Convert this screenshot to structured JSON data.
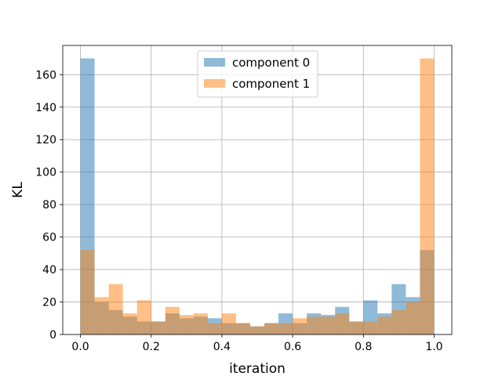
{
  "chart_data": {
    "type": "bar",
    "subtype": "overlapping histogram",
    "xlabel": "iteration",
    "ylabel": "KL",
    "xlim": [
      -0.05,
      1.05
    ],
    "ylim": [
      0,
      178
    ],
    "xticks": [
      0.0,
      0.2,
      0.4,
      0.6,
      0.8,
      1.0
    ],
    "xtick_labels": [
      "0.0",
      "0.2",
      "0.4",
      "0.6",
      "0.8",
      "1.0"
    ],
    "yticks": [
      0,
      20,
      40,
      60,
      80,
      100,
      120,
      140,
      160
    ],
    "ytick_labels": [
      "0",
      "20",
      "40",
      "60",
      "80",
      "100",
      "120",
      "140",
      "160"
    ],
    "grid": true,
    "legend_position": "top-center",
    "bin_width": 0.04,
    "bin_starts": [
      0.0,
      0.04,
      0.08,
      0.12,
      0.16,
      0.2,
      0.24,
      0.28,
      0.32,
      0.36,
      0.4,
      0.44,
      0.48,
      0.52,
      0.56,
      0.6,
      0.64,
      0.68,
      0.72,
      0.76,
      0.8,
      0.84,
      0.88,
      0.92,
      0.96
    ],
    "series": [
      {
        "name": "component 0",
        "color": "#1f77b4",
        "values": [
          170,
          20,
          15,
          11,
          8,
          8,
          13,
          10,
          11,
          10,
          7,
          7,
          5,
          7,
          13,
          7,
          13,
          12,
          17,
          8,
          21,
          13,
          31,
          23,
          52
        ]
      },
      {
        "name": "component 1",
        "color": "#ff7f0e",
        "values": [
          52,
          23,
          31,
          13,
          21,
          8,
          17,
          12,
          13,
          7,
          13,
          7,
          5,
          7,
          7,
          10,
          11,
          11,
          13,
          8,
          8,
          11,
          15,
          20,
          170
        ]
      }
    ]
  }
}
